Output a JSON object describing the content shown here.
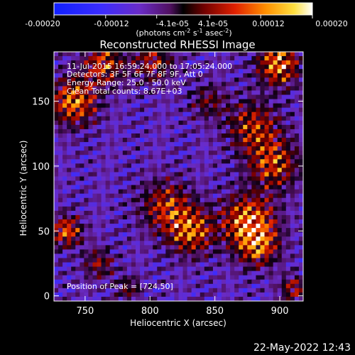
{
  "chart_data": {
    "type": "heatmap",
    "title": "Reconstructed RHESSI Image",
    "xlabel": "Heliocentric X (arcsec)",
    "ylabel": "Heliocentric Y (arcsec)",
    "xlim": [
      726,
      918
    ],
    "ylim": [
      -4,
      188
    ],
    "x_ticks": [
      750,
      800,
      850,
      900
    ],
    "y_ticks": [
      0,
      50,
      100,
      150
    ],
    "colorbar": {
      "range": [
        -0.0002,
        0.0002
      ],
      "tick_values": [
        -0.0002,
        -0.00012,
        -4.1e-05,
        4.1e-05,
        0.00012,
        0.0002
      ],
      "tick_labels": [
        "-0.00020",
        "-0.00012",
        "-4.1e-05",
        "4.1e-05",
        "0.00012",
        "0.00020"
      ],
      "label": "(photons cm",
      "label_sup1": "-2",
      "label_mid": " s",
      "label_sup2": "-1",
      "label_tail": " asec",
      "label_sup3": "-2",
      "label_end": ")"
    },
    "annotations": {
      "time": "11-Jul-2015 16:59:24.000 to 17:05:24.000",
      "detectors": "Detectors: 3F 5F 6F 7F 8F 9F, Att 0",
      "energy": "Energy Range: 25.0 - 50.0 keV",
      "method": "Clean    Total counts: 8.67E+03",
      "peak": "Position of Peak = [724,50]"
    }
  },
  "footer": {
    "timestamp": "22-May-2022 12:43"
  },
  "colors": {
    "background": "#000000",
    "foreground": "#ffffff"
  }
}
